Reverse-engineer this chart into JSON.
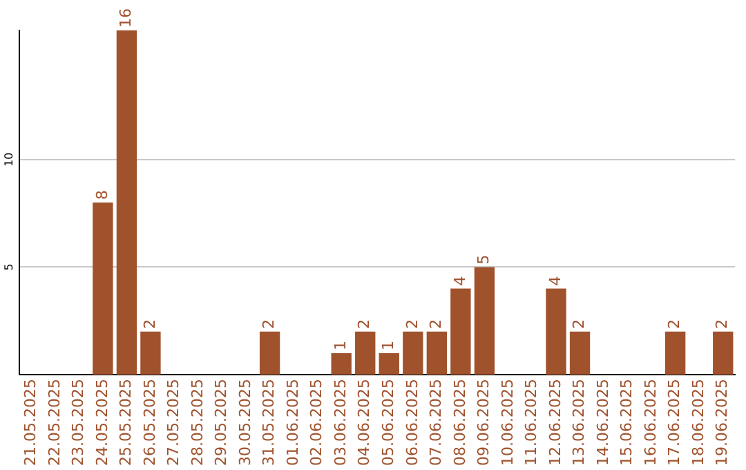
{
  "chart_data": {
    "type": "bar",
    "categories": [
      "21.05.2025",
      "22.05.2025",
      "23.05.2025",
      "24.05.2025",
      "25.05.2025",
      "26.05.2025",
      "27.05.2025",
      "28.05.2025",
      "29.05.2025",
      "30.05.2025",
      "31.05.2025",
      "01.06.2025",
      "02.06.2025",
      "03.06.2025",
      "04.06.2025",
      "05.06.2025",
      "06.06.2025",
      "07.06.2025",
      "08.06.2025",
      "09.06.2025",
      "10.06.2025",
      "11.06.2025",
      "12.06.2025",
      "13.06.2025",
      "14.06.2025",
      "15.06.2025",
      "16.06.2025",
      "17.06.2025",
      "18.06.2025",
      "19.06.2025"
    ],
    "values": [
      0,
      0,
      0,
      8,
      16,
      2,
      0,
      0,
      0,
      0,
      2,
      0,
      0,
      1,
      2,
      1,
      2,
      2,
      4,
      5,
      0,
      0,
      4,
      2,
      0,
      0,
      0,
      2,
      0,
      2
    ],
    "value_labels": [
      null,
      null,
      null,
      "8",
      "16",
      "2",
      null,
      null,
      null,
      null,
      "2",
      null,
      null,
      "1",
      "2",
      "1",
      "2",
      "2",
      "4",
      "5",
      null,
      null,
      "4",
      "2",
      null,
      null,
      null,
      "2",
      null,
      "2"
    ],
    "color": "#a0522d",
    "ylim": [
      0,
      16
    ],
    "yticks": [
      5,
      10
    ],
    "grid": "y"
  }
}
